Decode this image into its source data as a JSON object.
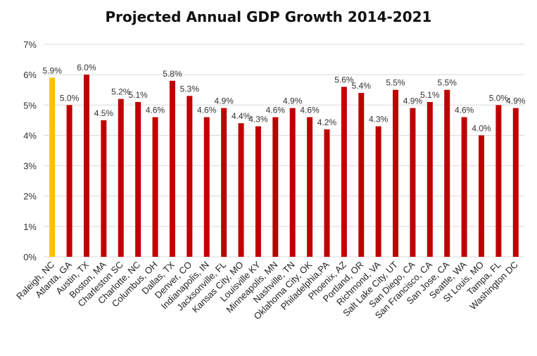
{
  "chart_data": {
    "type": "bar",
    "title": "Projected Annual GDP Growth 2014-2021",
    "xlabel": "",
    "ylabel": "",
    "ylim": [
      0,
      7
    ],
    "y_ticks": [
      "0%",
      "1%",
      "2%",
      "3%",
      "4%",
      "5%",
      "6%",
      "7%"
    ],
    "grid": true,
    "legend": "none",
    "categories": [
      "Raleigh, NC",
      "Atlanta, GA",
      "Austin, TX",
      "Boston, MA",
      "Charleston SC",
      "Charlotte, NC",
      "Columbus, OH",
      "Dallas, TX",
      "Denver, CO",
      "Indianapolis, IN",
      "Jacksonville, FL",
      "Kansas City, MO",
      "Louisville KY",
      "Minneapolis, MN",
      "Nashville, TN",
      "Oklahoma City, OK",
      "Philadelphia,PA",
      "Phoenix, AZ",
      "Portland, OR",
      "Richmond, VA",
      "Salt Lake City, UT",
      "San Diego, CA",
      "San Francisco, CA",
      "San Jose, CA",
      "Seattle, WA",
      "St Louis, MO",
      "Tampa, FL",
      "Washington DC"
    ],
    "values": [
      5.9,
      5.0,
      6.0,
      4.5,
      5.2,
      5.1,
      4.6,
      5.8,
      5.3,
      4.6,
      4.9,
      4.4,
      4.3,
      4.6,
      4.9,
      4.6,
      4.2,
      5.6,
      5.4,
      4.3,
      5.5,
      4.9,
      5.1,
      5.5,
      4.6,
      4.0,
      5.0,
      4.9
    ],
    "data_labels": [
      "5.9%",
      "5.0%",
      "6.0%",
      "4.5%",
      "5.2%",
      "5.1%",
      "4.6%",
      "5.8%",
      "5.3%",
      "4.6%",
      "4.9%",
      "4.4%",
      "4.3%",
      "4.6%",
      "4.9%",
      "4.6%",
      "4.2%",
      "5.6%",
      "5.4%",
      "4.3%",
      "5.5%",
      "4.9%",
      "5.1%",
      "5.5%",
      "4.6%",
      "4.0%",
      "5.0%",
      "4.9%"
    ],
    "highlight_index": 0,
    "colors": {
      "bar": "#C00000",
      "highlight": "#FFC000",
      "grid": "#D9D9D9"
    }
  }
}
